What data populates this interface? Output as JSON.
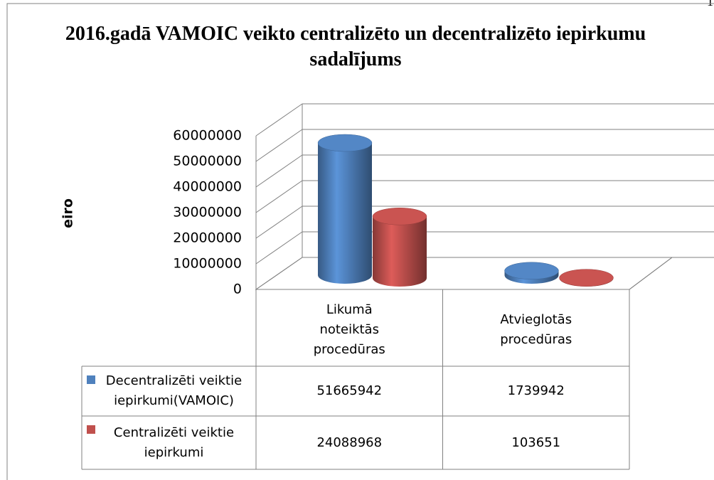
{
  "page_number": "1",
  "chart_data": {
    "type": "bar3d",
    "title": "2016.gadā VAMOIC veikto centralizēto un decentralizēto iepirkumu sadalījums",
    "y_label": "eiro",
    "categories": [
      "Likumā noteiktās procedūras",
      "Atvieglotās procedūras"
    ],
    "series": [
      {
        "name": "Decentralizēti veiktie iepirkumi(VAMOIC)",
        "color": "#4f81bd",
        "values": [
          51665942,
          1739942
        ]
      },
      {
        "name": "Centralizēti veiktie iepirkumi",
        "color": "#c0504d",
        "values": [
          24088968,
          103651
        ]
      }
    ],
    "ylim": [
      0,
      60000000
    ],
    "yticks": [
      0,
      10000000,
      20000000,
      30000000,
      40000000,
      50000000,
      60000000
    ],
    "grid": true,
    "data_table": true
  }
}
